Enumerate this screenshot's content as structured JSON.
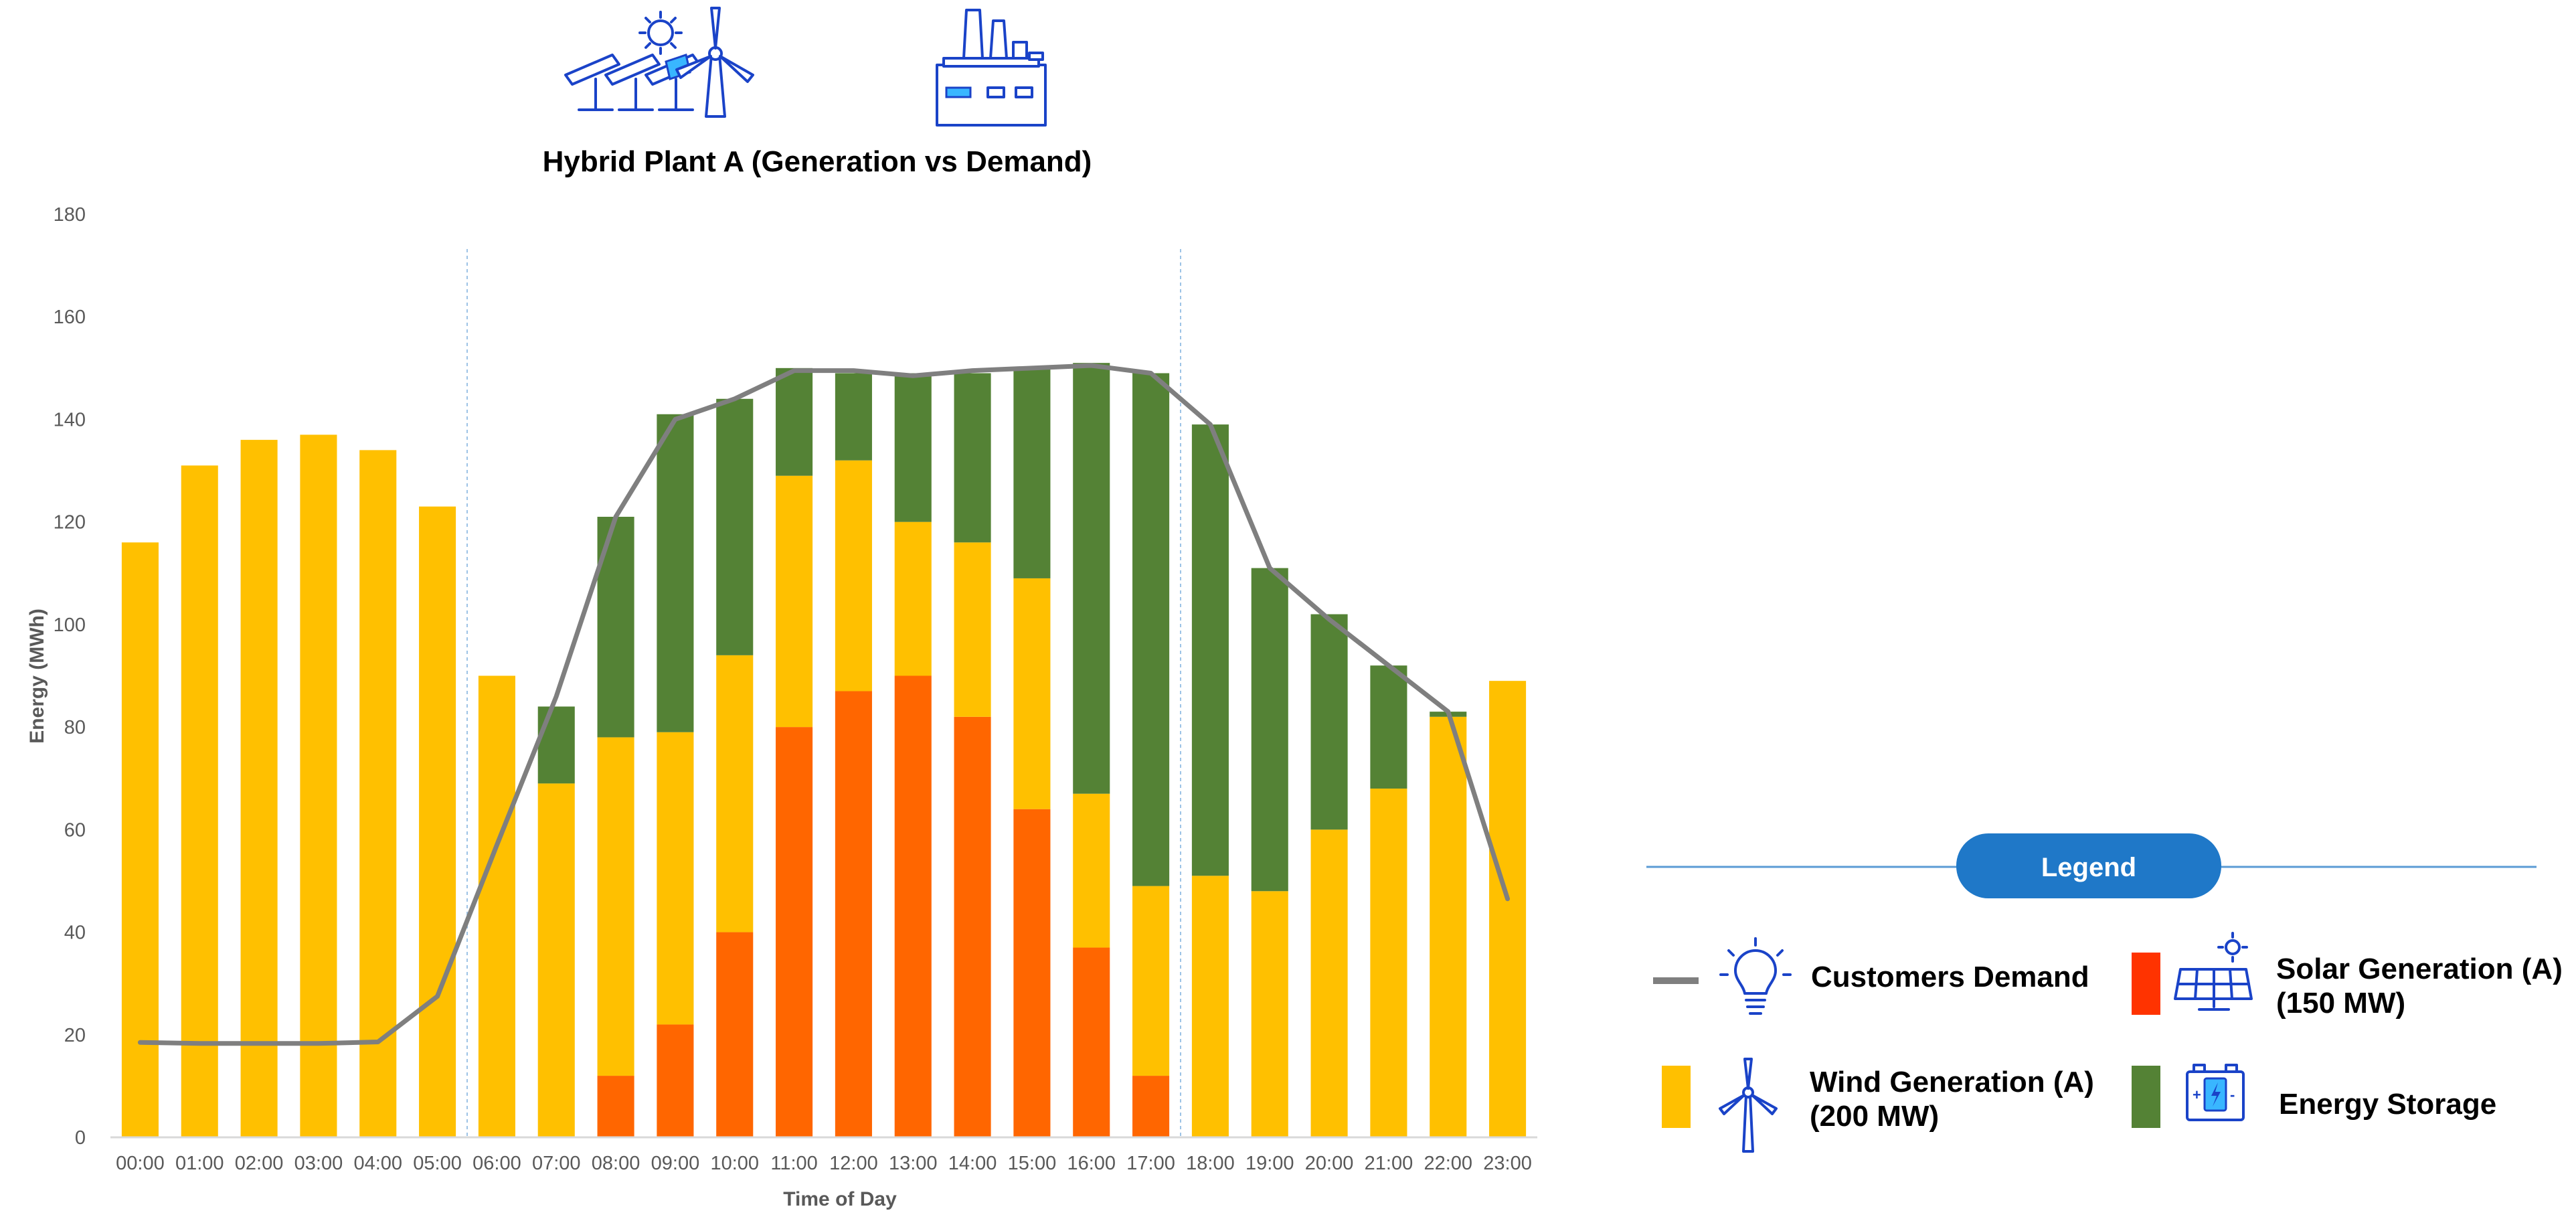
{
  "colors": {
    "wind": "#ffc000",
    "solar": "#ff6600",
    "storage": "#548235",
    "demand": "#7f7f7f",
    "solar_legend": "#ff3300",
    "legend_pill": "#1f78c8",
    "legend_rule": "#5b9bd5",
    "divider": "#9dc3e6"
  },
  "icons": {
    "top_left": "solar-wind-plant-icon",
    "top_right": "factory-icon",
    "demand": "lightbulb-icon",
    "solar": "solar-panel-icon",
    "wind": "wind-turbine-icon",
    "storage": "battery-icon"
  },
  "chart_data": {
    "type": "bar",
    "stacked": true,
    "title": "Hybrid Plant A (Generation vs Demand)",
    "xlabel": "Time of Day",
    "ylabel": "Energy (MWh)",
    "ylim": [
      0,
      180
    ],
    "yticks": [
      "0",
      "20",
      "40",
      "60",
      "80",
      "100",
      "120",
      "140",
      "160",
      "180"
    ],
    "grid": false,
    "categories": [
      "00:00",
      "01:00",
      "02:00",
      "03:00",
      "04:00",
      "05:00",
      "06:00",
      "07:00",
      "08:00",
      "09:00",
      "10:00",
      "11:00",
      "12:00",
      "13:00",
      "14:00",
      "15:00",
      "16:00",
      "17:00",
      "18:00",
      "19:00",
      "20:00",
      "21:00",
      "22:00",
      "23:00"
    ],
    "series": [
      {
        "name": "Solar Generation (A) (150 MW)",
        "kind": "bar",
        "values": [
          0,
          0,
          0,
          0,
          0,
          0,
          0,
          0,
          12,
          22,
          40,
          80,
          87,
          90,
          82,
          64,
          37,
          12,
          0,
          0,
          0,
          0,
          0,
          0
        ]
      },
      {
        "name": "Wind Generation (A) (200 MW)",
        "kind": "bar",
        "values": [
          116,
          131,
          136,
          137,
          134,
          123,
          90,
          69,
          66,
          57,
          54,
          49,
          45,
          30,
          34,
          45,
          30,
          37,
          51,
          48,
          60,
          68,
          82,
          89
        ]
      },
      {
        "name": "Energy Storage",
        "kind": "bar",
        "values": [
          0,
          0,
          0,
          0,
          0,
          0,
          0,
          15,
          43,
          62,
          50,
          21,
          17,
          29,
          33,
          41,
          84,
          100,
          88,
          63,
          42,
          24,
          1,
          0
        ]
      },
      {
        "name": "Customers Demand",
        "kind": "line",
        "values": [
          18.5,
          18.3,
          18.3,
          18.3,
          18.6,
          27.5,
          57,
          86,
          121,
          140,
          144,
          149.5,
          149.5,
          148.5,
          149.5,
          150,
          150.5,
          149,
          139,
          111,
          101,
          92,
          83,
          46.5
        ]
      }
    ],
    "dividers_after": [
      "05:00",
      "17:00"
    ],
    "legend": {
      "title": "Legend",
      "placement": "right",
      "entries": [
        {
          "label_lines": [
            "Customers Demand"
          ]
        },
        {
          "label_lines": [
            "Solar Generation (A)",
            "(150 MW)"
          ]
        },
        {
          "label_lines": [
            "Wind Generation (A)",
            "(200 MW)"
          ]
        },
        {
          "label_lines": [
            "Energy Storage"
          ]
        }
      ]
    }
  }
}
